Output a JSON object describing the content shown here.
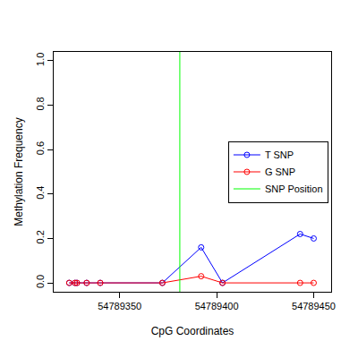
{
  "chart_data": {
    "type": "line",
    "x_label": "CpG Coordinates",
    "y_label": "Methylation Frequency",
    "x": [
      54789324,
      54789327,
      54789328,
      54789333,
      54789340,
      54789372,
      54789392,
      54789403,
      54789443,
      54789450
    ],
    "series": [
      {
        "name": "T SNP",
        "color": "#0000ff",
        "marker": "circle-open",
        "line_style": "solid",
        "values": [
          0,
          0,
          0,
          0,
          0,
          0,
          0.16,
          0,
          0.22,
          0.2
        ]
      },
      {
        "name": "G SNP",
        "color": "#ff0000",
        "marker": "circle-open",
        "line_style": "solid",
        "values": [
          0,
          0,
          0,
          0,
          0,
          0,
          0.03,
          0,
          0,
          0
        ]
      }
    ],
    "snp_position": {
      "name": "SNP Position",
      "color": "#00ff00",
      "x": 54789381
    },
    "xlim": [
      54789316,
      54789459
    ],
    "xticks": [
      54789350,
      54789400,
      54789450
    ],
    "ylim": [
      -0.04,
      1.04
    ],
    "yticks": [
      {
        "value": 0,
        "label": "0.0"
      },
      {
        "value": 0.2,
        "label": "0.2"
      },
      {
        "value": 0.4,
        "label": "0.4"
      },
      {
        "value": 0.6,
        "label": "0.6"
      },
      {
        "value": 0.8,
        "label": "0.8"
      },
      {
        "value": 1,
        "label": "1.0"
      }
    ],
    "grid": false,
    "legend": "right"
  }
}
